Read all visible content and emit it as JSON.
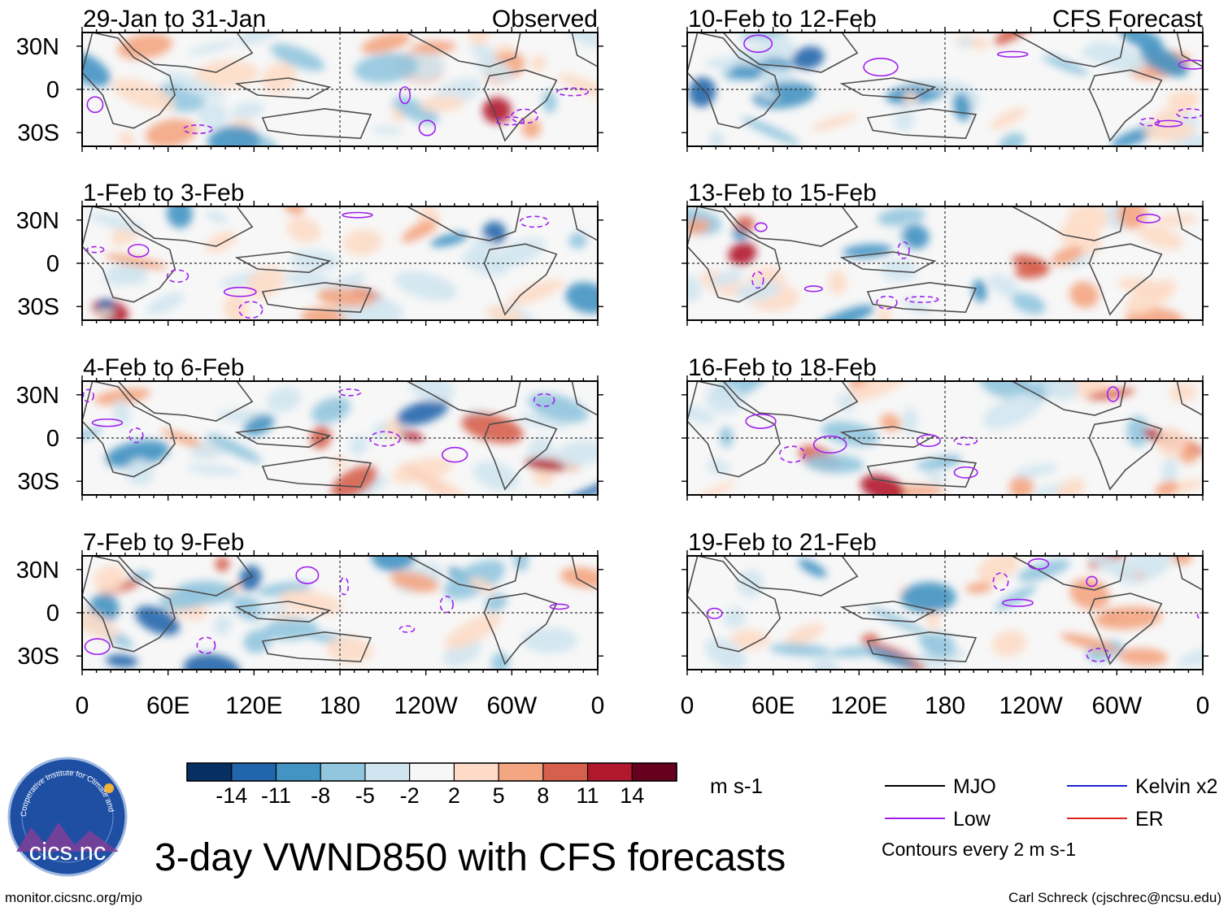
{
  "chart_data": {
    "type": "heatmap",
    "title": "3-day VWND850 with CFS forecasts",
    "variable": "VWND850",
    "units": "m s-1",
    "x_ticks": [
      "0",
      "60E",
      "120E",
      "180",
      "120W",
      "60W",
      "0"
    ],
    "y_ticks": [
      "30N",
      "0",
      "30S"
    ],
    "columns": [
      {
        "label": "Observed",
        "panels": [
          {
            "period": "29-Jan to 31-Jan"
          },
          {
            "period": "1-Feb to 3-Feb"
          },
          {
            "period": "4-Feb to 6-Feb"
          },
          {
            "period": "7-Feb to 9-Feb"
          }
        ]
      },
      {
        "label": "CFS Forecast",
        "panels": [
          {
            "period": "10-Feb to 12-Feb"
          },
          {
            "period": "13-Feb to 15-Feb"
          },
          {
            "period": "16-Feb to 18-Feb"
          },
          {
            "period": "19-Feb to 21-Feb"
          }
        ]
      }
    ],
    "colorbar": {
      "levels": [
        "-14",
        "-11",
        "-8",
        "-5",
        "-2",
        "2",
        "5",
        "8",
        "11",
        "14"
      ],
      "colors": [
        "#053061",
        "#2166ac",
        "#4393c3",
        "#92c5de",
        "#d1e5f0",
        "#f7f7f7",
        "#fddbc7",
        "#f4a582",
        "#d6604d",
        "#b2182b",
        "#67001f"
      ]
    },
    "legend": {
      "items": [
        {
          "label": "MJO",
          "color": "#000000"
        },
        {
          "label": "Kelvin x2",
          "color": "#2222cc"
        },
        {
          "label": "Low",
          "color": "#a020f0"
        },
        {
          "label": "ER",
          "color": "#dd2222"
        }
      ],
      "note": "Contours every 2 m s-1"
    }
  },
  "logo": {
    "text": "cics.nc",
    "ring_text": "Cooperative Institute for Climate and Satellites"
  },
  "footer": {
    "left": "monitor.cicsnc.org/mjo",
    "right": "Carl Schreck (cjschrec@ncsu.edu)"
  }
}
